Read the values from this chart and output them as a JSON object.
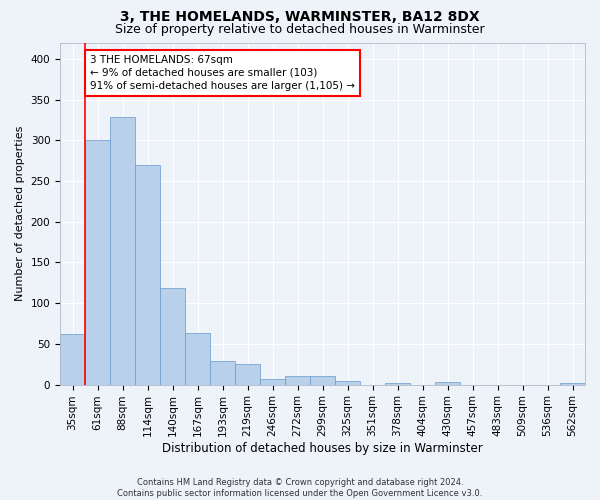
{
  "title": "3, THE HOMELANDS, WARMINSTER, BA12 8DX",
  "subtitle": "Size of property relative to detached houses in Warminster",
  "xlabel": "Distribution of detached houses by size in Warminster",
  "ylabel": "Number of detached properties",
  "categories": [
    "35sqm",
    "61sqm",
    "88sqm",
    "114sqm",
    "140sqm",
    "167sqm",
    "193sqm",
    "219sqm",
    "246sqm",
    "272sqm",
    "299sqm",
    "325sqm",
    "351sqm",
    "378sqm",
    "404sqm",
    "430sqm",
    "457sqm",
    "483sqm",
    "509sqm",
    "536sqm",
    "562sqm"
  ],
  "values": [
    62,
    300,
    328,
    270,
    119,
    63,
    29,
    25,
    7,
    10,
    10,
    4,
    0,
    2,
    0,
    3,
    0,
    0,
    0,
    0,
    2
  ],
  "bar_color": "#b8d0ea",
  "bar_edge_color": "#6699cc",
  "bar_edge_width": 0.5,
  "red_line_bar_index": 1,
  "annotation_text": "3 THE HOMELANDS: 67sqm\n← 9% of detached houses are smaller (103)\n91% of semi-detached houses are larger (1,105) →",
  "annotation_box_color": "white",
  "annotation_box_edge_color": "red",
  "ylim": [
    0,
    420
  ],
  "yticks": [
    0,
    50,
    100,
    150,
    200,
    250,
    300,
    350,
    400
  ],
  "footer_text": "Contains HM Land Registry data © Crown copyright and database right 2024.\nContains public sector information licensed under the Open Government Licence v3.0.",
  "background_color": "#eef2f9",
  "grid_color": "#ffffff",
  "title_fontsize": 10,
  "subtitle_fontsize": 9,
  "xlabel_fontsize": 8.5,
  "ylabel_fontsize": 8,
  "tick_fontsize": 7.5,
  "annotation_fontsize": 7.5,
  "footer_fontsize": 6
}
